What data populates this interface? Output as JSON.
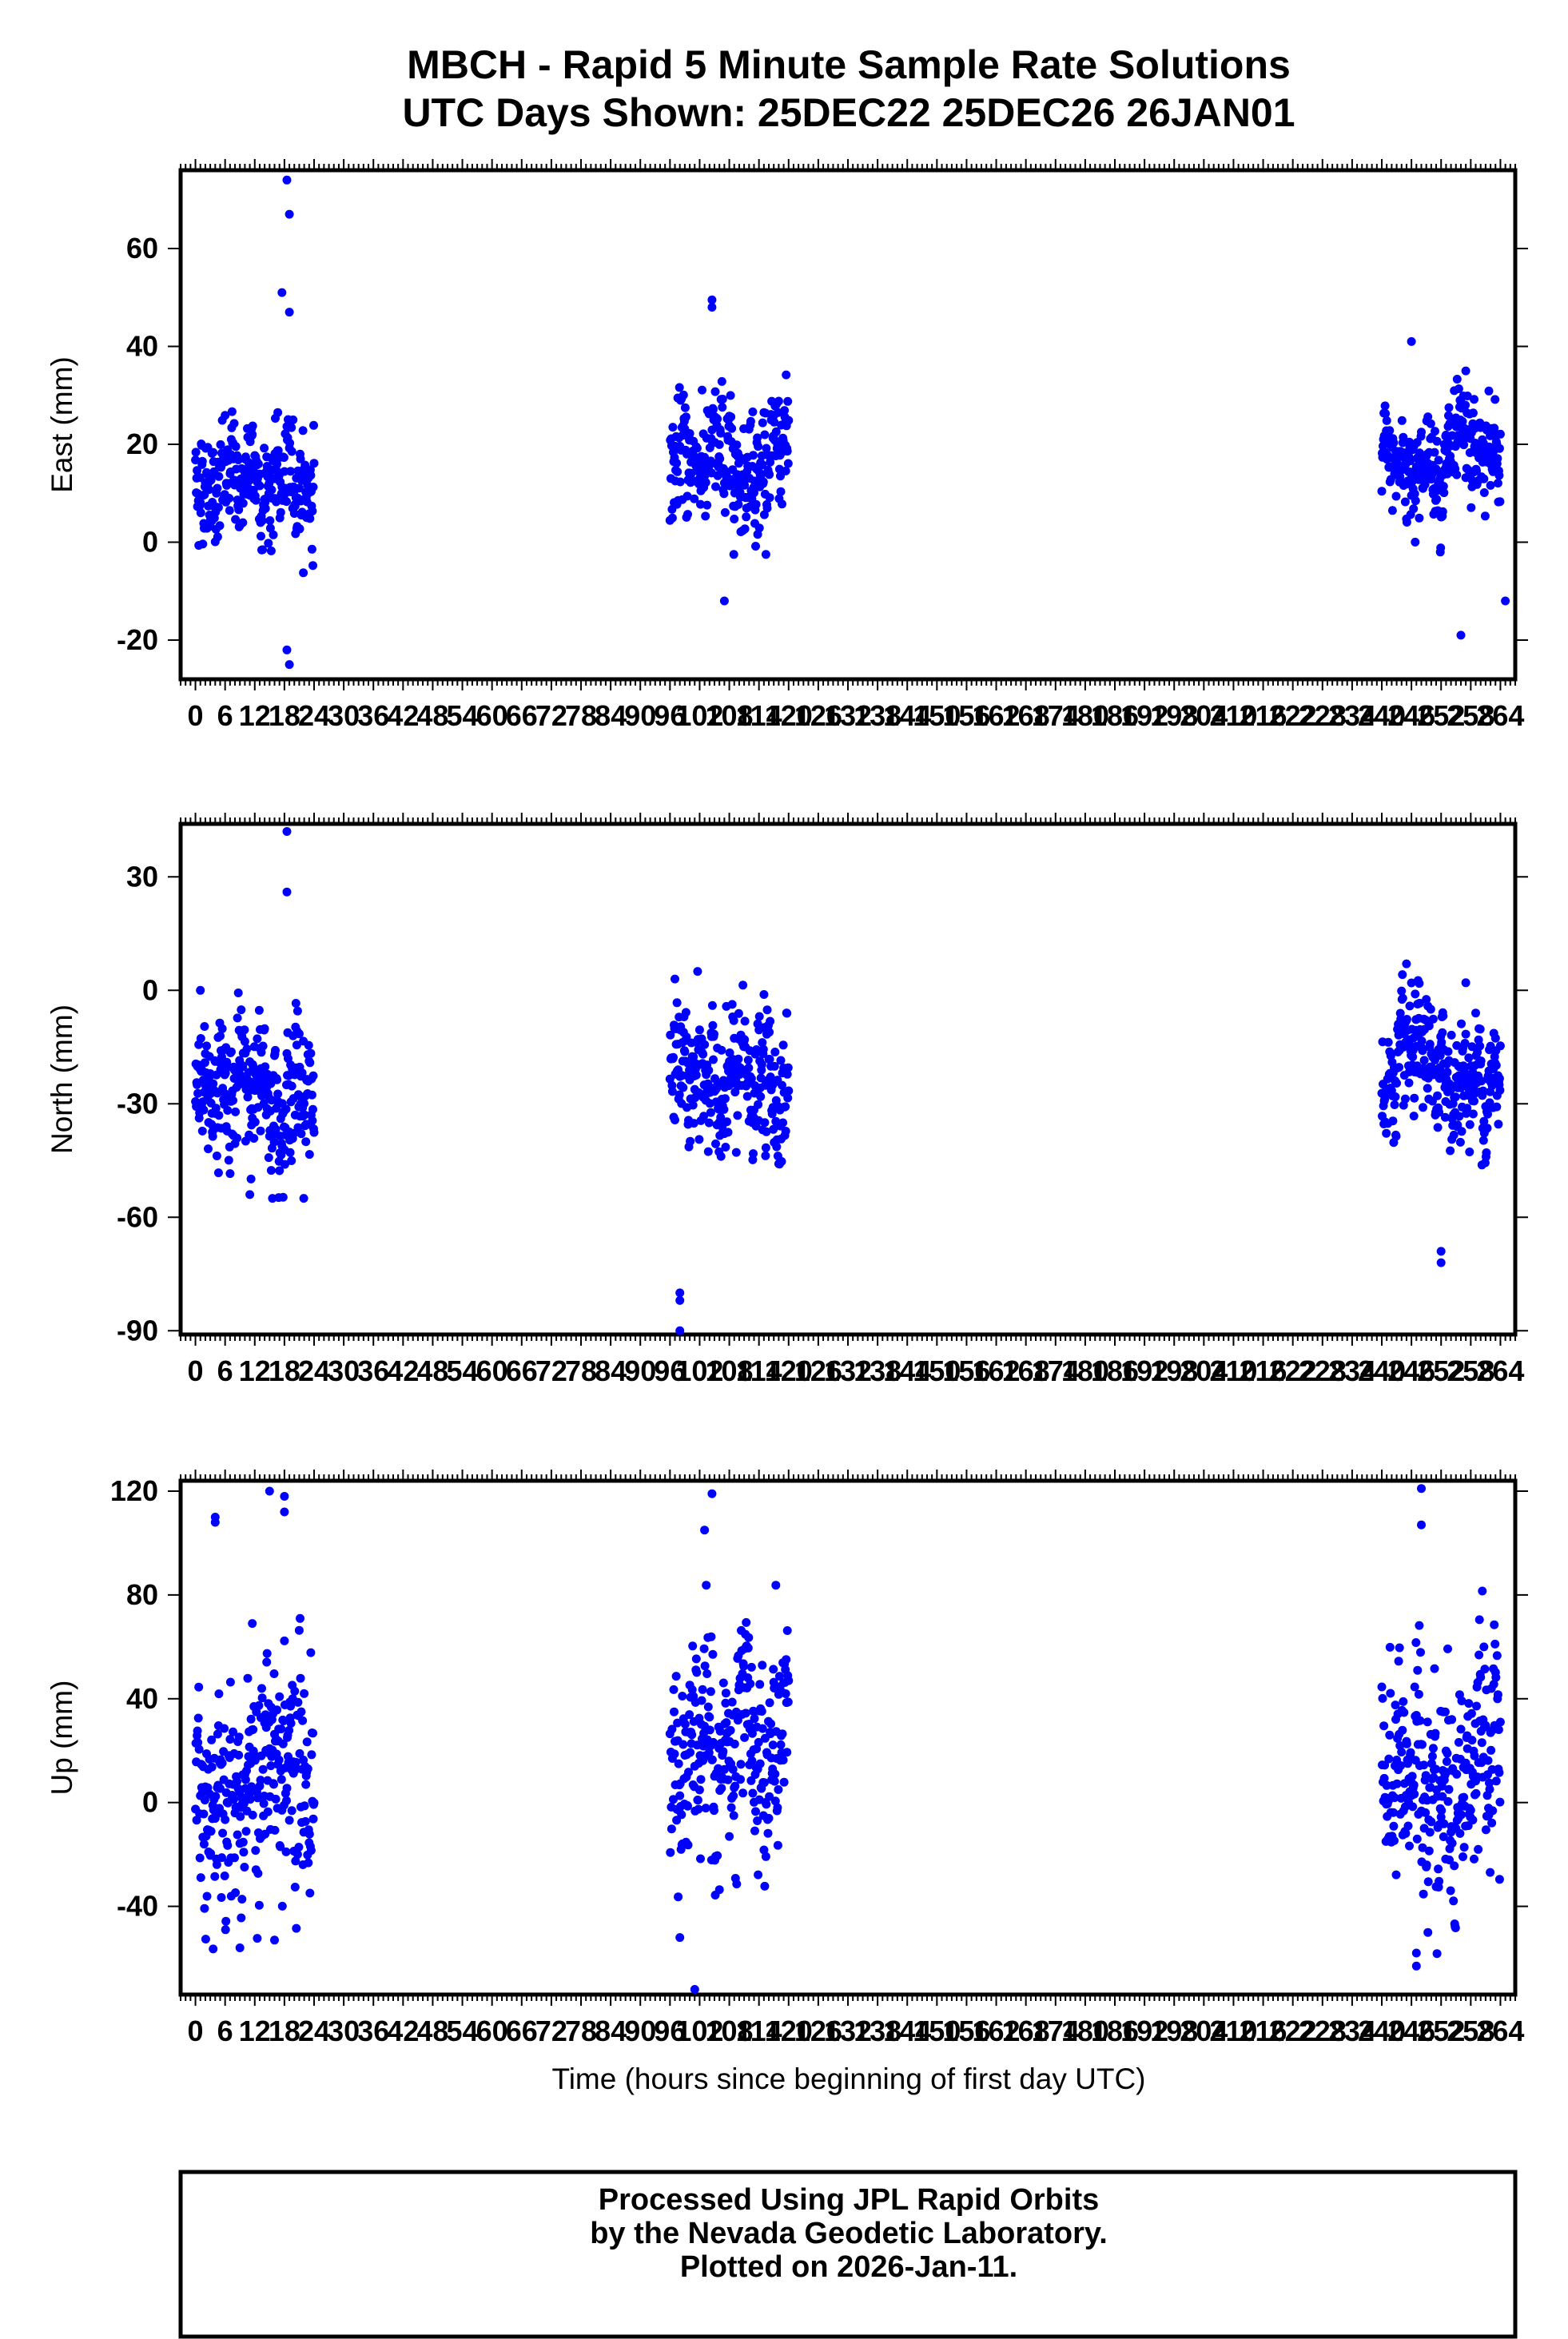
{
  "title_line1": "MBCH - Rapid 5 Minute Sample Rate Solutions",
  "title_line2": "UTC Days Shown:  25DEC22 25DEC26 26JAN01",
  "x_axis_label": "Time (hours since beginning of first day UTC)",
  "footer": {
    "line1": "Processed Using JPL Rapid Orbits",
    "line2": "by the Nevada Geodetic Laboratory.",
    "line3": "Plotted on 2026-Jan-11."
  },
  "colors": {
    "points": "#0000ff",
    "axes": "#000000",
    "background": "#ffffff"
  },
  "chart_data": [
    {
      "type": "scatter",
      "ylabel": "East (mm)",
      "xlim": [
        -3,
        267
      ],
      "ylim": [
        -28,
        76
      ],
      "yticks": [
        -20,
        0,
        20,
        40,
        60
      ],
      "xticks": [
        0,
        6,
        12,
        18,
        24,
        30,
        36,
        42,
        48,
        54,
        60,
        66,
        72,
        78,
        84,
        90,
        96,
        102,
        108,
        114,
        120,
        126,
        132,
        138,
        144,
        150,
        156,
        162,
        168,
        174,
        180,
        186,
        192,
        198,
        204,
        210,
        216,
        222,
        228,
        234,
        240,
        246,
        252,
        258,
        264
      ],
      "clusters": [
        {
          "x_range": [
            0,
            24
          ],
          "typical_range": [
            0,
            25
          ],
          "extremes": [
            [
              18.5,
              74
            ],
            [
              19,
              67
            ],
            [
              17.5,
              51
            ],
            [
              19,
              47
            ],
            [
              18.5,
              -22
            ],
            [
              19,
              -25
            ]
          ]
        },
        {
          "x_range": [
            96,
            120
          ],
          "typical_range": [
            4,
            30
          ],
          "extremes": [
            [
              104.5,
              49.5
            ],
            [
              104.5,
              48
            ],
            [
              107,
              -12
            ]
          ]
        },
        {
          "x_range": [
            240,
            264
          ],
          "typical_range": [
            4,
            28
          ],
          "extremes": [
            [
              246,
              41
            ],
            [
              257,
              35
            ],
            [
              256,
              -19
            ],
            [
              265,
              -12
            ]
          ]
        }
      ],
      "series": [
        {
          "name": "",
          "color": "#0000ff",
          "x": [],
          "y": []
        }
      ]
    },
    {
      "type": "scatter",
      "ylabel": "North (mm)",
      "xlim": [
        -3,
        267
      ],
      "ylim": [
        -91,
        44
      ],
      "yticks": [
        -90,
        -60,
        -30,
        0,
        30
      ],
      "xticks": [
        0,
        6,
        12,
        18,
        24,
        30,
        36,
        42,
        48,
        54,
        60,
        66,
        72,
        78,
        84,
        90,
        96,
        102,
        108,
        114,
        120,
        126,
        132,
        138,
        144,
        150,
        156,
        162,
        168,
        174,
        180,
        186,
        192,
        198,
        204,
        210,
        216,
        222,
        228,
        234,
        240,
        246,
        252,
        258,
        264
      ],
      "clusters": [
        {
          "x_range": [
            0,
            24
          ],
          "typical_range": [
            -45,
            -5
          ],
          "extremes": [
            [
              18.5,
              42
            ],
            [
              18.5,
              26
            ],
            [
              1,
              0
            ],
            [
              11,
              -54
            ]
          ]
        },
        {
          "x_range": [
            96,
            120
          ],
          "typical_range": [
            -45,
            -5
          ],
          "extremes": [
            [
              98,
              -80
            ],
            [
              98,
              -82
            ],
            [
              98,
              -90
            ],
            [
              97,
              3
            ]
          ]
        },
        {
          "x_range": [
            240,
            264
          ],
          "typical_range": [
            -42,
            -5
          ],
          "extremes": [
            [
              245,
              7
            ],
            [
              252,
              -69
            ],
            [
              252,
              -72
            ],
            [
              257,
              2
            ]
          ]
        }
      ],
      "series": [
        {
          "name": "",
          "color": "#0000ff",
          "x": [],
          "y": []
        }
      ]
    },
    {
      "type": "scatter",
      "ylabel": "Up (mm)",
      "xlim": [
        -3,
        267
      ],
      "ylim": [
        -74,
        124
      ],
      "yticks": [
        -40,
        0,
        40,
        80,
        120
      ],
      "xticks": [
        0,
        6,
        12,
        18,
        24,
        30,
        36,
        42,
        48,
        54,
        60,
        66,
        72,
        78,
        84,
        90,
        96,
        102,
        108,
        114,
        120,
        126,
        132,
        138,
        144,
        150,
        156,
        162,
        168,
        174,
        180,
        186,
        192,
        198,
        204,
        210,
        216,
        222,
        228,
        234,
        240,
        246,
        252,
        258,
        264
      ],
      "clusters": [
        {
          "x_range": [
            0,
            24
          ],
          "typical_range": [
            -40,
            60
          ],
          "extremes": [
            [
              4,
              110
            ],
            [
              4,
              108
            ],
            [
              15,
              120
            ],
            [
              18,
              118
            ],
            [
              18,
              112
            ],
            [
              9,
              -56
            ],
            [
              16,
              -53
            ]
          ]
        },
        {
          "x_range": [
            96,
            120
          ],
          "typical_range": [
            -35,
            60
          ],
          "extremes": [
            [
              104.5,
              119
            ],
            [
              103,
              105
            ],
            [
              101,
              -72
            ],
            [
              98,
              -52
            ]
          ]
        },
        {
          "x_range": [
            240,
            264
          ],
          "typical_range": [
            -35,
            60
          ],
          "extremes": [
            [
              248,
              121
            ],
            [
              248,
              107
            ],
            [
              247,
              -63
            ],
            [
              247,
              -58
            ]
          ]
        }
      ],
      "series": [
        {
          "name": "",
          "color": "#0000ff",
          "x": [],
          "y": []
        }
      ]
    }
  ]
}
